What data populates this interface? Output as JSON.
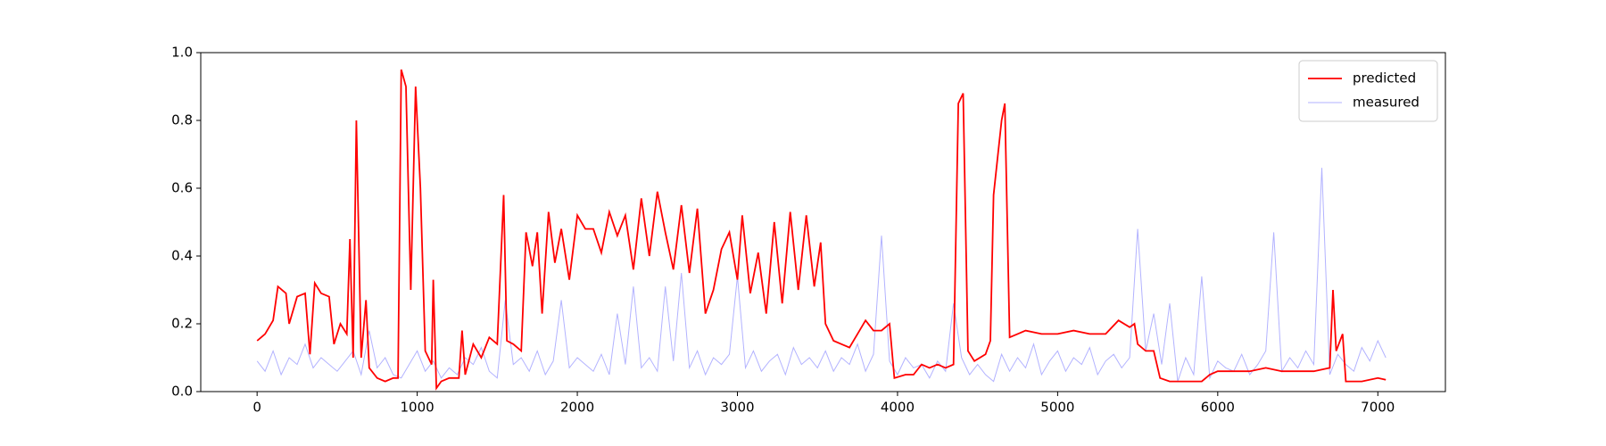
{
  "chart_data": {
    "type": "line",
    "xlim": [
      -352,
      7422
    ],
    "ylim": [
      0,
      1
    ],
    "xticks": [
      0,
      1000,
      2000,
      3000,
      4000,
      5000,
      6000,
      7000
    ],
    "yticks": [
      {
        "value": 0,
        "label": "0.0"
      },
      {
        "value": 0.2,
        "label": "0.2"
      },
      {
        "value": 0.4,
        "label": "0.4"
      },
      {
        "value": 0.6,
        "label": "0.6"
      },
      {
        "value": 0.8,
        "label": "0.8"
      },
      {
        "value": 1,
        "label": "1.0"
      }
    ],
    "legend": "upper right",
    "series": [
      {
        "name": "predicted",
        "color": "#ff0000",
        "width": 1.8,
        "opacity": 1,
        "x": [
          0,
          50,
          100,
          130,
          180,
          200,
          250,
          300,
          330,
          360,
          400,
          450,
          480,
          520,
          560,
          580,
          600,
          620,
          650,
          680,
          700,
          750,
          800,
          850,
          880,
          900,
          930,
          960,
          990,
          1020,
          1050,
          1090,
          1100,
          1120,
          1150,
          1200,
          1260,
          1280,
          1300,
          1350,
          1400,
          1450,
          1500,
          1540,
          1560,
          1600,
          1650,
          1680,
          1720,
          1750,
          1780,
          1820,
          1860,
          1900,
          1950,
          2000,
          2050,
          2100,
          2150,
          2200,
          2250,
          2300,
          2350,
          2400,
          2450,
          2500,
          2550,
          2600,
          2650,
          2700,
          2750,
          2800,
          2850,
          2900,
          2950,
          3000,
          3030,
          3080,
          3130,
          3180,
          3230,
          3280,
          3330,
          3380,
          3430,
          3480,
          3520,
          3550,
          3600,
          3650,
          3700,
          3750,
          3800,
          3850,
          3900,
          3950,
          3980,
          4050,
          4100,
          4150,
          4200,
          4250,
          4300,
          4350,
          4380,
          4410,
          4440,
          4480,
          4550,
          4580,
          4600,
          4650,
          4670,
          4700,
          4750,
          4800,
          4900,
          5000,
          5100,
          5200,
          5300,
          5380,
          5450,
          5480,
          5500,
          5550,
          5600,
          5640,
          5700,
          5800,
          5900,
          5950,
          6000,
          6100,
          6200,
          6300,
          6400,
          6500,
          6600,
          6700,
          6720,
          6740,
          6780,
          6800,
          6900,
          7000,
          7050
        ],
        "values": [
          0.15,
          0.17,
          0.21,
          0.31,
          0.29,
          0.2,
          0.28,
          0.29,
          0.11,
          0.32,
          0.29,
          0.28,
          0.14,
          0.2,
          0.17,
          0.45,
          0.1,
          0.8,
          0.1,
          0.27,
          0.07,
          0.04,
          0.03,
          0.04,
          0.04,
          0.95,
          0.9,
          0.3,
          0.9,
          0.6,
          0.12,
          0.08,
          0.33,
          0.01,
          0.03,
          0.04,
          0.04,
          0.18,
          0.05,
          0.14,
          0.1,
          0.16,
          0.14,
          0.58,
          0.15,
          0.14,
          0.12,
          0.47,
          0.37,
          0.47,
          0.23,
          0.53,
          0.38,
          0.48,
          0.33,
          0.52,
          0.48,
          0.48,
          0.41,
          0.53,
          0.46,
          0.52,
          0.36,
          0.57,
          0.4,
          0.59,
          0.47,
          0.36,
          0.55,
          0.35,
          0.54,
          0.23,
          0.3,
          0.42,
          0.47,
          0.33,
          0.52,
          0.29,
          0.41,
          0.23,
          0.5,
          0.26,
          0.53,
          0.3,
          0.52,
          0.31,
          0.44,
          0.2,
          0.15,
          0.14,
          0.13,
          0.17,
          0.21,
          0.18,
          0.18,
          0.2,
          0.04,
          0.05,
          0.05,
          0.08,
          0.07,
          0.08,
          0.07,
          0.08,
          0.85,
          0.88,
          0.12,
          0.09,
          0.11,
          0.15,
          0.58,
          0.8,
          0.85,
          0.16,
          0.17,
          0.18,
          0.17,
          0.17,
          0.18,
          0.17,
          0.17,
          0.21,
          0.19,
          0.2,
          0.14,
          0.12,
          0.12,
          0.04,
          0.03,
          0.03,
          0.03,
          0.05,
          0.06,
          0.06,
          0.06,
          0.07,
          0.06,
          0.06,
          0.06,
          0.07,
          0.3,
          0.12,
          0.17,
          0.03,
          0.03,
          0.04,
          0.035
        ]
      },
      {
        "name": "measured",
        "color": "#0000ff",
        "width": 1,
        "opacity": 0.3,
        "x": [
          0,
          50,
          100,
          150,
          200,
          250,
          300,
          350,
          400,
          450,
          500,
          550,
          600,
          650,
          700,
          750,
          800,
          850,
          900,
          950,
          1000,
          1050,
          1100,
          1150,
          1200,
          1250,
          1300,
          1350,
          1400,
          1450,
          1500,
          1550,
          1600,
          1650,
          1700,
          1750,
          1800,
          1850,
          1900,
          1950,
          2000,
          2050,
          2100,
          2150,
          2200,
          2250,
          2300,
          2350,
          2400,
          2450,
          2500,
          2550,
          2600,
          2650,
          2700,
          2750,
          2800,
          2850,
          2900,
          2950,
          3000,
          3050,
          3100,
          3150,
          3200,
          3250,
          3300,
          3350,
          3400,
          3450,
          3500,
          3550,
          3600,
          3650,
          3700,
          3750,
          3800,
          3850,
          3900,
          3950,
          4000,
          4050,
          4100,
          4150,
          4200,
          4250,
          4300,
          4350,
          4400,
          4450,
          4500,
          4550,
          4600,
          4650,
          4700,
          4750,
          4800,
          4850,
          4900,
          4950,
          5000,
          5050,
          5100,
          5150,
          5200,
          5250,
          5300,
          5350,
          5400,
          5450,
          5500,
          5550,
          5600,
          5650,
          5700,
          5750,
          5800,
          5850,
          5900,
          5950,
          6000,
          6050,
          6100,
          6150,
          6200,
          6250,
          6300,
          6350,
          6400,
          6450,
          6500,
          6550,
          6600,
          6650,
          6700,
          6750,
          6800,
          6850,
          6900,
          6950,
          7000,
          7050
        ],
        "values": [
          0.09,
          0.06,
          0.12,
          0.05,
          0.1,
          0.08,
          0.14,
          0.07,
          0.1,
          0.08,
          0.06,
          0.09,
          0.12,
          0.05,
          0.18,
          0.07,
          0.1,
          0.05,
          0.04,
          0.08,
          0.12,
          0.06,
          0.09,
          0.04,
          0.07,
          0.05,
          0.1,
          0.08,
          0.13,
          0.06,
          0.04,
          0.27,
          0.08,
          0.1,
          0.06,
          0.12,
          0.05,
          0.09,
          0.27,
          0.07,
          0.1,
          0.08,
          0.06,
          0.11,
          0.05,
          0.23,
          0.08,
          0.31,
          0.07,
          0.1,
          0.06,
          0.31,
          0.09,
          0.35,
          0.07,
          0.12,
          0.05,
          0.1,
          0.08,
          0.11,
          0.34,
          0.07,
          0.12,
          0.06,
          0.09,
          0.11,
          0.05,
          0.13,
          0.08,
          0.1,
          0.07,
          0.12,
          0.06,
          0.1,
          0.08,
          0.14,
          0.06,
          0.11,
          0.46,
          0.09,
          0.05,
          0.1,
          0.07,
          0.08,
          0.04,
          0.09,
          0.06,
          0.26,
          0.1,
          0.05,
          0.08,
          0.05,
          0.03,
          0.11,
          0.06,
          0.1,
          0.07,
          0.14,
          0.05,
          0.09,
          0.12,
          0.06,
          0.1,
          0.08,
          0.13,
          0.05,
          0.09,
          0.11,
          0.07,
          0.1,
          0.48,
          0.12,
          0.23,
          0.08,
          0.26,
          0.03,
          0.1,
          0.05,
          0.34,
          0.04,
          0.09,
          0.07,
          0.06,
          0.11,
          0.05,
          0.08,
          0.12,
          0.47,
          0.06,
          0.1,
          0.07,
          0.12,
          0.08,
          0.66,
          0.05,
          0.11,
          0.08,
          0.06,
          0.13,
          0.09,
          0.15,
          0.1
        ]
      }
    ]
  }
}
